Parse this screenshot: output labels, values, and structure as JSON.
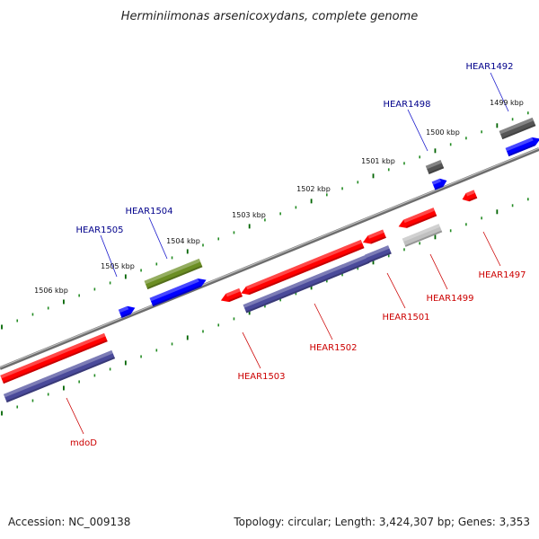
{
  "title": "Herminiimonas arsenicoxydans, complete genome",
  "footer": {
    "accession": "Accession: NC_009138",
    "summary": "Topology: circular; Length: 3,424,307 bp; Genes: 3,353"
  },
  "ruler_labels": [
    "1506 kbp",
    "1505 kbp",
    "1504 kbp",
    "1503 kbp",
    "1502 kbp",
    "1501 kbp",
    "1500 kbp",
    "1499 kbp"
  ],
  "genes_top": [
    {
      "id": "HEAR1505",
      "label": "HEAR1505",
      "color": "#00008b"
    },
    {
      "id": "HEAR1504",
      "label": "HEAR1504",
      "color": "#00008b"
    },
    {
      "id": "HEAR1498",
      "label": "HEAR1498",
      "color": "#00008b"
    },
    {
      "id": "HEAR1492",
      "label": "HEAR1492",
      "color": "#00008b"
    }
  ],
  "genes_bottom": [
    {
      "id": "mdoD",
      "label": "mdoD",
      "color": "#cc0000"
    },
    {
      "id": "HEAR1503",
      "label": "HEAR1503",
      "color": "#cc0000"
    },
    {
      "id": "HEAR1502",
      "label": "HEAR1502",
      "color": "#cc0000"
    },
    {
      "id": "HEAR1501",
      "label": "HEAR1501",
      "color": "#cc0000"
    },
    {
      "id": "HEAR1499",
      "label": "HEAR1499",
      "color": "#cc0000"
    },
    {
      "id": "HEAR1497",
      "label": "HEAR1497",
      "color": "#cc0000"
    }
  ],
  "colors": {
    "plus_strand_gene": "#ff0000",
    "plus_strand_cds": "#0000ff",
    "minus_strand_cds": "#4a4a9a",
    "olive_gene": "#6b8e23",
    "dark_gray_gene": "#555555",
    "light_gray_gene": "#c0c0c0",
    "backbone": "#888888",
    "tick_minor": "#228b22",
    "tick_major": "#006400"
  }
}
